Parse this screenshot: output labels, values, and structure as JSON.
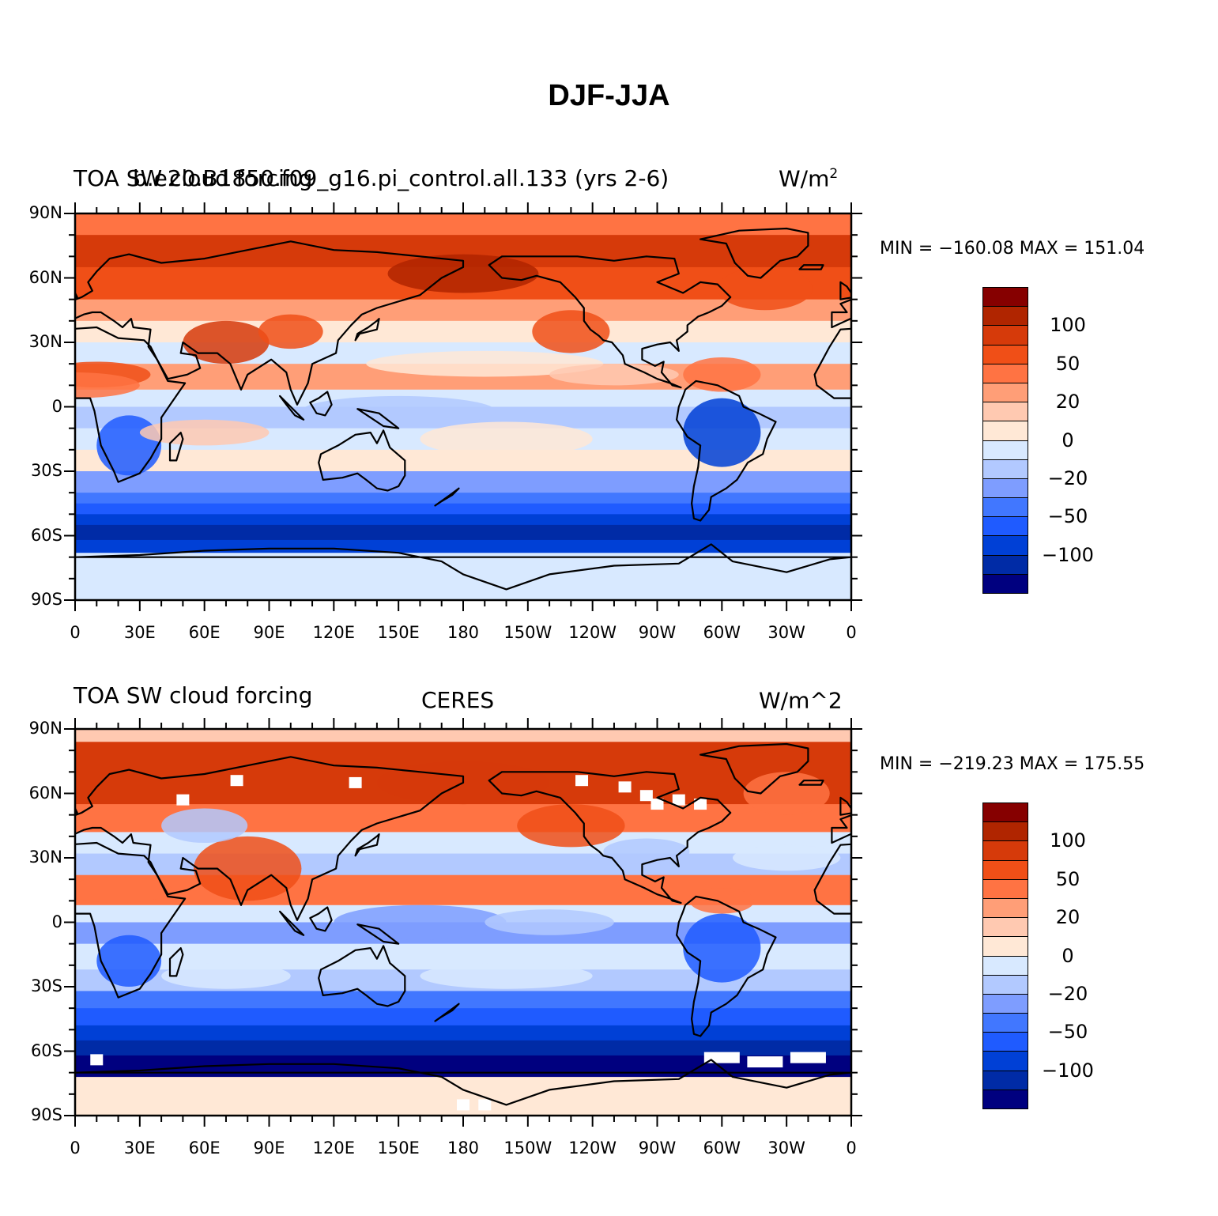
{
  "title": "DJF-JJA",
  "palette": [
    "#00007f",
    "#002ba6",
    "#0040d6",
    "#1f5bff",
    "#4177ff",
    "#7e9dff",
    "#b2c9ff",
    "#d8e9ff",
    "#ffe8d6",
    "#ffc9b1",
    "#ff9e77",
    "#ff7343",
    "#f04f17",
    "#d63a0a",
    "#b02500",
    "#860000"
  ],
  "colorbar_labels": [
    "100",
    "50",
    "20",
    "0",
    "−20",
    "−50",
    "−100"
  ],
  "y_ticks": [
    "90N",
    "60N",
    "30N",
    "0",
    "30S",
    "60S",
    "90S"
  ],
  "x_ticks": [
    "0",
    "30E",
    "60E",
    "90E",
    "120E",
    "150E",
    "180",
    "150W",
    "120W",
    "90W",
    "60W",
    "30W",
    "0"
  ],
  "panels": [
    {
      "left_title": "TOA SW cloud forcing",
      "center_title": "b.e20.B1850.f09_g16.pi_control.all.133 (yrs 2-6)",
      "units": "W/m",
      "units_sup": "2",
      "min_max": "MIN = −160.08 MAX = 151.04",
      "stats": {
        "min": -160.08,
        "max": 151.04
      },
      "missing_data_patches": false
    },
    {
      "left_title": "TOA SW cloud forcing",
      "center_title": "CERES",
      "units": "W/m^2",
      "units_sup": "",
      "min_max": "MIN = −219.23 MAX = 175.55",
      "stats": {
        "min": -219.23,
        "max": 175.55
      },
      "missing_data_patches": true
    }
  ]
}
